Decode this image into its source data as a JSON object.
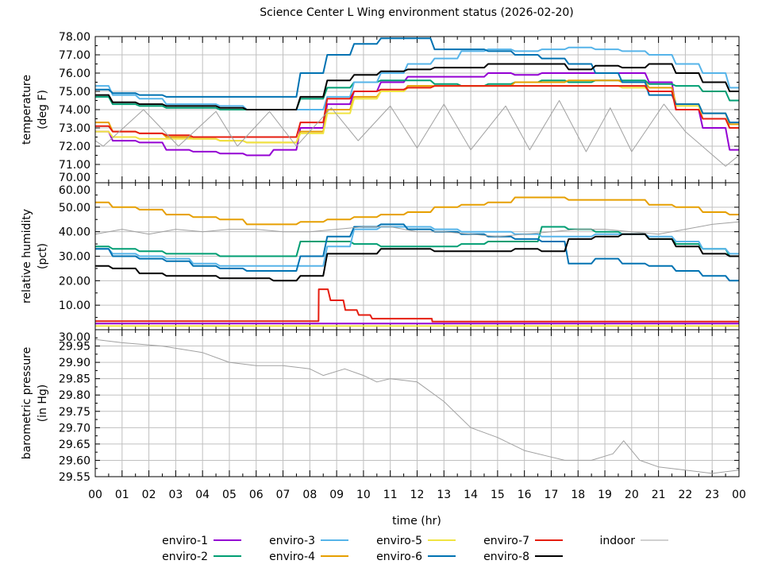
{
  "chart_data": [
    {
      "type": "line",
      "title": "Science Center L Wing environment status (2026-02-20)",
      "xlabel": "time (hr)",
      "ylabel": [
        "temperature",
        "(deg F)"
      ],
      "xlim": [
        0,
        24
      ],
      "ylim": [
        70,
        78
      ],
      "yticks": [
        "70.00",
        "71.00",
        "72.00",
        "73.00",
        "74.00",
        "75.00",
        "76.00",
        "77.00",
        "78.00"
      ],
      "xticks": [
        "00",
        "01",
        "02",
        "03",
        "04",
        "05",
        "06",
        "07",
        "08",
        "09",
        "10",
        "11",
        "12",
        "13",
        "14",
        "15",
        "16",
        "17",
        "18",
        "19",
        "20",
        "21",
        "22",
        "23",
        "00"
      ],
      "grid": true,
      "x": [
        0,
        1,
        2,
        3,
        4,
        5,
        6,
        7,
        8,
        9,
        10,
        11,
        12,
        13,
        14,
        15,
        16,
        17,
        18,
        19,
        20,
        21,
        22,
        23,
        24
      ],
      "series": [
        {
          "name": "enviro-1",
          "values": [
            72.8,
            72.3,
            72.2,
            71.8,
            71.7,
            71.6,
            71.5,
            71.8,
            73.0,
            74.3,
            75.0,
            75.5,
            75.8,
            75.8,
            75.8,
            76.0,
            75.9,
            76.0,
            76.0,
            76.0,
            76.0,
            75.5,
            74.0,
            73.0,
            71.8
          ]
        },
        {
          "name": "enviro-2",
          "values": [
            74.7,
            74.3,
            74.2,
            74.1,
            74.1,
            74.0,
            74.0,
            74.0,
            74.6,
            75.2,
            75.5,
            75.6,
            75.6,
            75.4,
            75.3,
            75.4,
            75.5,
            75.6,
            75.5,
            75.6,
            75.6,
            75.4,
            75.3,
            75.0,
            74.5
          ]
        },
        {
          "name": "enviro-3",
          "values": [
            75.3,
            74.8,
            74.6,
            74.3,
            74.3,
            74.2,
            74.0,
            74.0,
            74.0,
            74.7,
            75.5,
            76.0,
            76.5,
            76.8,
            77.2,
            77.3,
            77.2,
            77.3,
            77.4,
            77.3,
            77.2,
            77.0,
            76.5,
            76.0,
            75.2
          ]
        },
        {
          "name": "enviro-4",
          "values": [
            73.3,
            72.8,
            72.7,
            72.5,
            72.4,
            72.3,
            72.2,
            72.2,
            72.8,
            74.0,
            74.7,
            75.0,
            75.3,
            75.3,
            75.3,
            75.3,
            75.5,
            75.5,
            75.6,
            75.6,
            75.5,
            75.2,
            74.3,
            73.8,
            73.2
          ]
        },
        {
          "name": "enviro-5",
          "values": [
            72.8,
            72.5,
            72.4,
            72.4,
            72.4,
            72.3,
            72.2,
            72.2,
            72.7,
            73.8,
            74.6,
            75.0,
            75.2,
            75.3,
            75.3,
            75.3,
            75.3,
            75.3,
            75.3,
            75.3,
            75.2,
            75.0,
            74.2,
            73.5,
            73.0
          ]
        },
        {
          "name": "enviro-6",
          "values": [
            75.1,
            74.9,
            74.8,
            74.7,
            74.7,
            74.7,
            74.7,
            74.7,
            76.0,
            77.0,
            77.6,
            77.9,
            77.9,
            77.3,
            77.3,
            77.2,
            77.0,
            76.8,
            76.5,
            76.0,
            75.5,
            74.8,
            74.3,
            73.8,
            73.3
          ]
        },
        {
          "name": "enviro-7",
          "values": [
            73.1,
            72.8,
            72.7,
            72.6,
            72.5,
            72.5,
            72.5,
            72.5,
            73.3,
            74.6,
            75.0,
            75.1,
            75.2,
            75.3,
            75.3,
            75.3,
            75.3,
            75.3,
            75.3,
            75.3,
            75.3,
            75.0,
            74.0,
            73.5,
            73.0
          ]
        },
        {
          "name": "enviro-8",
          "values": [
            74.8,
            74.4,
            74.3,
            74.2,
            74.2,
            74.1,
            74.0,
            74.0,
            74.7,
            75.6,
            75.9,
            76.1,
            76.2,
            76.3,
            76.3,
            76.5,
            76.5,
            76.5,
            76.2,
            76.4,
            76.3,
            76.5,
            76.0,
            75.5,
            75.0
          ]
        },
        {
          "name": "indoor",
          "x": [
            0,
            0.3,
            1.8,
            3.1,
            4.5,
            5.3,
            6.5,
            7.5,
            8.8,
            9.8,
            11.0,
            12.0,
            13.0,
            14.0,
            15.3,
            16.2,
            17.3,
            18.3,
            19.2,
            20.0,
            21.2,
            22.0,
            23.5,
            24
          ],
          "values": [
            72.3,
            72.0,
            74.0,
            72.0,
            73.9,
            72.0,
            73.9,
            72.0,
            74.1,
            72.3,
            74.2,
            71.9,
            74.3,
            71.8,
            74.2,
            71.8,
            74.5,
            71.7,
            74.1,
            71.7,
            74.3,
            72.8,
            70.9,
            71.5
          ]
        }
      ]
    },
    {
      "type": "line",
      "ylabel": [
        "relative humidity",
        "(pct)"
      ],
      "xlim": [
        0,
        24
      ],
      "ylim": [
        0,
        60
      ],
      "yticks": [
        "10.00",
        "20.00",
        "30.00",
        "40.00",
        "50.00",
        "60.00"
      ],
      "grid": true,
      "x": [
        0,
        1,
        2,
        3,
        4,
        5,
        6,
        7,
        8,
        9,
        10,
        11,
        12,
        13,
        14,
        15,
        16,
        17,
        18,
        19,
        20,
        21,
        22,
        23,
        24
      ],
      "series": [
        {
          "name": "enviro-1",
          "values": [
            2.5,
            2.5,
            2.5,
            2.5,
            2.5,
            2.5,
            2.5,
            2.5,
            2.5,
            2.5,
            2.5,
            2.5,
            2.5,
            2.5,
            2.5,
            2.5,
            2.5,
            2.5,
            2.5,
            2.5,
            2.5,
            2.5,
            2.5,
            2.5,
            2.5
          ]
        },
        {
          "name": "enviro-2",
          "values": [
            34,
            33,
            32,
            31,
            31,
            30,
            30,
            30,
            36,
            36,
            35,
            34,
            34,
            34,
            35,
            36,
            36,
            42,
            41,
            40,
            39,
            37,
            35,
            33,
            30
          ]
        },
        {
          "name": "enviro-3",
          "values": [
            33,
            31,
            30,
            29,
            27,
            26,
            26,
            26,
            26,
            34,
            41,
            42,
            42,
            41,
            40,
            40,
            39,
            38,
            38,
            39,
            39,
            38,
            36,
            33,
            31
          ]
        },
        {
          "name": "enviro-4",
          "values": [
            52,
            50,
            49,
            47,
            46,
            45,
            43,
            43,
            44,
            45,
            46,
            47,
            48,
            50,
            51,
            52,
            54,
            54,
            53,
            53,
            53,
            51,
            50,
            48,
            47
          ]
        },
        {
          "name": "enviro-5",
          "values": [
            1.5,
            1.5,
            1.5,
            1.5,
            1.5,
            1.5,
            1.5,
            1.5,
            1.5,
            1.5,
            1.5,
            1.5,
            1.5,
            1.5,
            1.5,
            1.5,
            1.5,
            1.5,
            1.5,
            1.5,
            1.5,
            1.5,
            1.5,
            1.5,
            1.5
          ]
        },
        {
          "name": "enviro-6",
          "values": [
            33,
            30,
            29,
            28,
            26,
            25,
            24,
            24,
            30,
            38,
            42,
            43,
            41,
            40,
            39,
            38,
            37,
            36,
            27,
            29,
            27,
            26,
            24,
            22,
            20
          ]
        },
        {
          "name": "enviro-7",
          "x": [
            0,
            8.3,
            8.35,
            9.0,
            9.5,
            10.0,
            10.5,
            12.5,
            12.6,
            24
          ],
          "values": [
            3.5,
            3.5,
            16.5,
            12,
            8,
            6,
            4.5,
            4.5,
            3.3,
            3.3
          ]
        },
        {
          "name": "enviro-8",
          "values": [
            26,
            25,
            23,
            22,
            22,
            21,
            21,
            20,
            22,
            31,
            31,
            33,
            33,
            32,
            32,
            32,
            33,
            32,
            37,
            38,
            39,
            37,
            34,
            31,
            30
          ]
        },
        {
          "name": "indoor",
          "values": [
            39,
            41,
            39,
            41,
            40,
            41,
            41,
            40,
            40,
            41,
            42,
            42,
            40,
            40,
            39,
            38,
            39,
            40,
            41,
            41,
            40,
            39,
            41,
            43,
            44
          ]
        }
      ]
    },
    {
      "type": "line",
      "ylabel": [
        "barometric pressure",
        "(in Hg)"
      ],
      "xlim": [
        0,
        24
      ],
      "ylim": [
        29.55,
        30.0
      ],
      "yticks": [
        "29.55",
        "29.60",
        "29.65",
        "29.70",
        "29.75",
        "29.80",
        "29.85",
        "29.90",
        "29.95",
        "30.00"
      ],
      "grid": true,
      "series": [
        {
          "name": "indoor",
          "x": [
            0,
            1,
            2.5,
            4,
            5,
            6,
            7,
            8,
            8.5,
            9.3,
            10,
            10.5,
            11,
            12,
            13,
            14,
            15,
            16,
            17,
            17.5,
            18.5,
            19.3,
            19.7,
            20.3,
            21,
            22,
            23,
            24
          ],
          "values": [
            29.97,
            29.96,
            29.95,
            29.93,
            29.9,
            29.89,
            29.89,
            29.88,
            29.86,
            29.88,
            29.86,
            29.84,
            29.85,
            29.84,
            29.78,
            29.7,
            29.67,
            29.63,
            29.61,
            29.6,
            29.6,
            29.62,
            29.66,
            29.6,
            29.58,
            29.57,
            29.56,
            29.57
          ]
        }
      ]
    }
  ],
  "legend": {
    "placement": "bottom",
    "entries": [
      {
        "name": "enviro-1",
        "color": "#9400d3"
      },
      {
        "name": "enviro-2",
        "color": "#009e73"
      },
      {
        "name": "enviro-3",
        "color": "#56b4e9"
      },
      {
        "name": "enviro-4",
        "color": "#e69f00"
      },
      {
        "name": "enviro-5",
        "color": "#f0e442"
      },
      {
        "name": "enviro-6",
        "color": "#0072b2"
      },
      {
        "name": "enviro-7",
        "color": "#e51e10"
      },
      {
        "name": "enviro-8",
        "color": "#000000"
      },
      {
        "name": "indoor",
        "color": "#a0a0a0"
      }
    ]
  }
}
